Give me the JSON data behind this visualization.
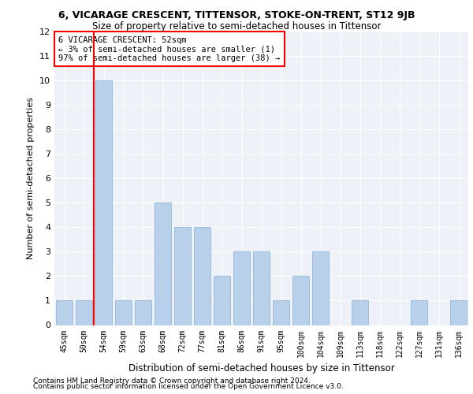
{
  "title": "6, VICARAGE CRESCENT, TITTENSOR, STOKE-ON-TRENT, ST12 9JB",
  "subtitle": "Size of property relative to semi-detached houses in Tittensor",
  "xlabel": "Distribution of semi-detached houses by size in Tittensor",
  "ylabel": "Number of semi-detached properties",
  "footnote1": "Contains HM Land Registry data © Crown copyright and database right 2024.",
  "footnote2": "Contains public sector information licensed under the Open Government Licence v3.0.",
  "annotation_title": "6 VICARAGE CRESCENT: 52sqm",
  "annotation_line1": "← 3% of semi-detached houses are smaller (1)",
  "annotation_line2": "97% of semi-detached houses are larger (38) →",
  "categories": [
    "45sqm",
    "50sqm",
    "54sqm",
    "59sqm",
    "63sqm",
    "68sqm",
    "72sqm",
    "77sqm",
    "81sqm",
    "86sqm",
    "91sqm",
    "95sqm",
    "100sqm",
    "104sqm",
    "109sqm",
    "113sqm",
    "118sqm",
    "122sqm",
    "127sqm",
    "131sqm",
    "136sqm"
  ],
  "values": [
    1,
    1,
    10,
    1,
    1,
    5,
    4,
    4,
    2,
    3,
    3,
    1,
    2,
    3,
    0,
    1,
    0,
    0,
    1,
    0,
    1
  ],
  "bar_color": "#b8d0ea",
  "bar_edge_color": "#90b8d8",
  "ylim": [
    0,
    12
  ],
  "yticks": [
    0,
    1,
    2,
    3,
    4,
    5,
    6,
    7,
    8,
    9,
    10,
    11,
    12
  ],
  "bg_color": "#eef2f8",
  "grid_color": "#ffffff",
  "title_fontsize": 9,
  "subtitle_fontsize": 8.5,
  "annotation_fontsize": 7.5,
  "tick_fontsize": 7,
  "ylabel_fontsize": 8,
  "xlabel_fontsize": 8.5,
  "footnote_fontsize": 6.5
}
